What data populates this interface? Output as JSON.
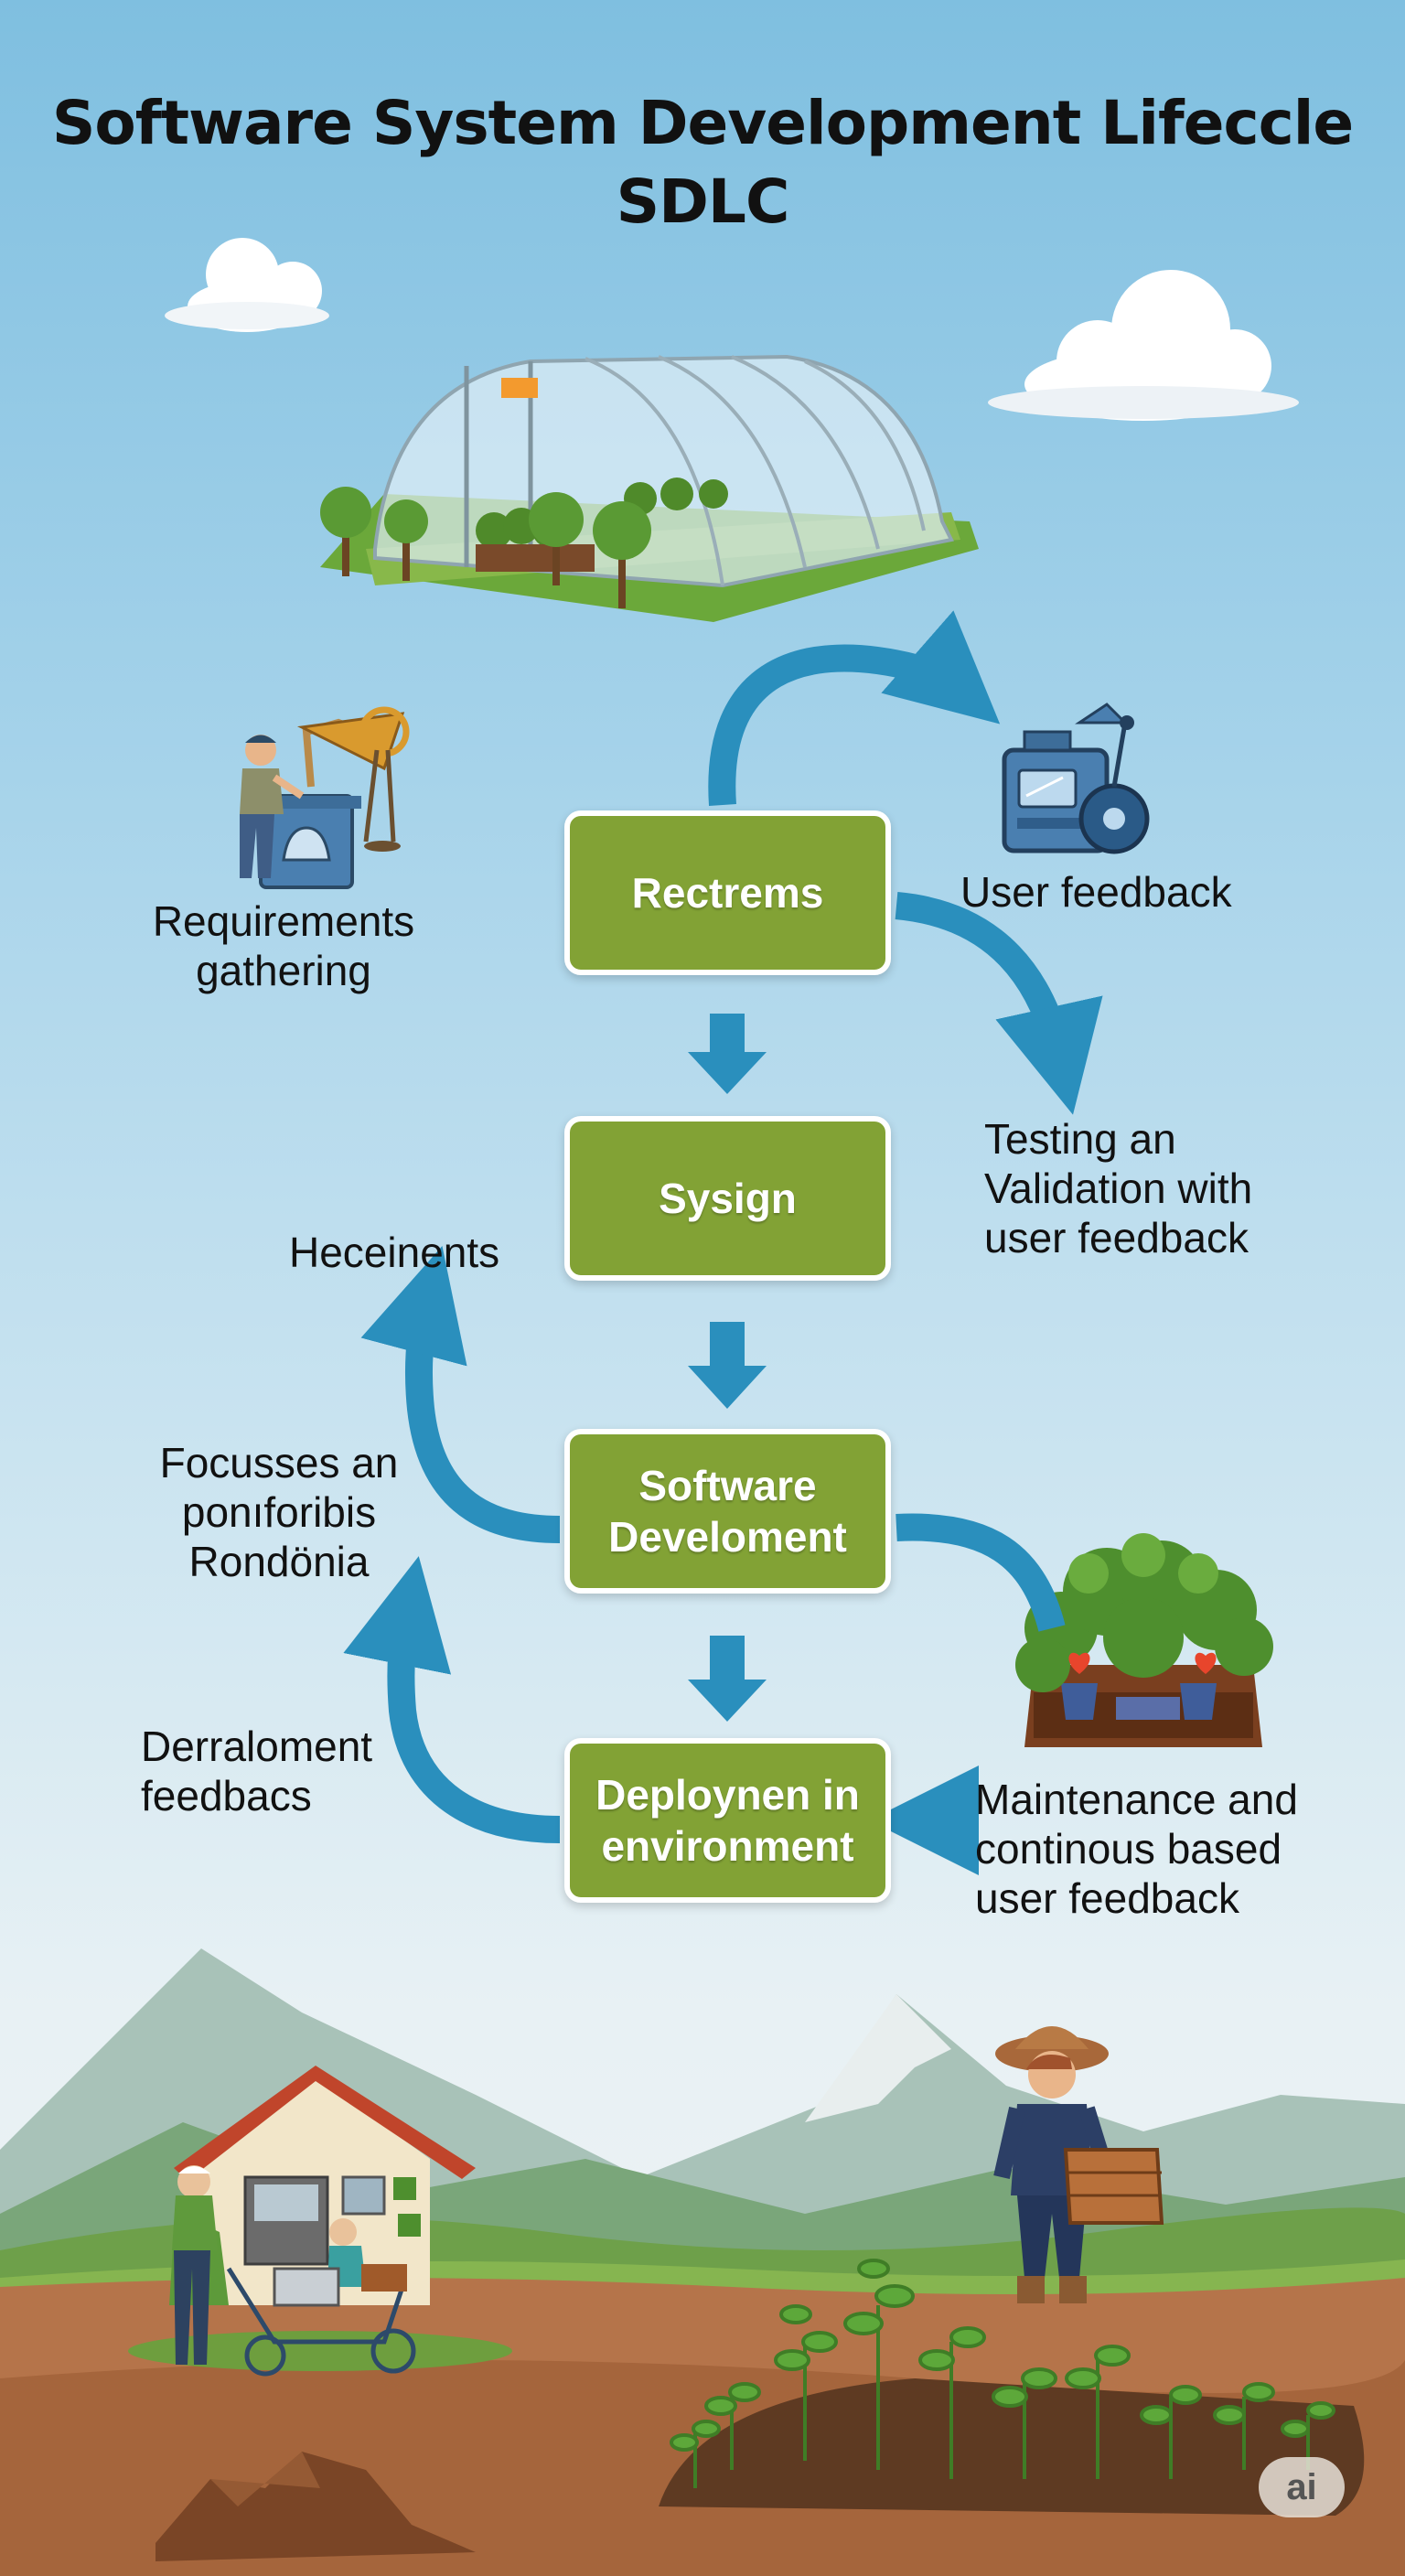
{
  "title": "Software System Development Lifeccle SDLC",
  "stages": [
    {
      "label": "Rectrems"
    },
    {
      "label": "Sysign"
    },
    {
      "label": "Software Develoment"
    },
    {
      "label": "Deploynen in environment"
    }
  ],
  "labels": {
    "requirements": "Requirements gathering",
    "user_feedback": "User feedback",
    "testing": "Testing an Validation with user feedback",
    "heceinents": "Heceinents",
    "focusses": "Focusses an ponıforibis Rondönia",
    "derraloment": "Derraloment feedbacs",
    "maintenance": "Maintenance and continous based user feedback"
  },
  "badge": "ai",
  "colors": {
    "stage_fill": "#82a235",
    "arrow": "#2a8fbd",
    "sky_top": "#7fbfe0",
    "soil": "#9a5a34"
  },
  "icons": [
    "greenhouse-icon",
    "worker-machine-icon",
    "feedback-device-icon",
    "planter-box-icon",
    "farmhouse-icon",
    "farmer-icon",
    "seedling-field-icon",
    "cloud-icon",
    "mountain-icon"
  ]
}
